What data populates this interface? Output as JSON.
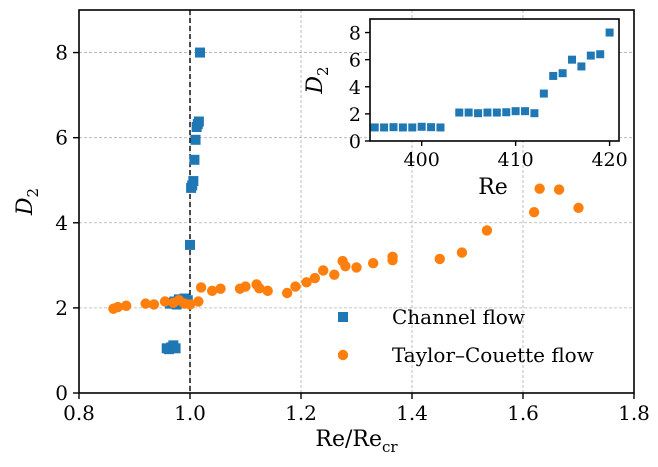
{
  "chart_data": [
    {
      "type": "scatter",
      "xlim": [
        0.8,
        1.8
      ],
      "ylim": [
        0,
        9
      ],
      "xticks": [
        0.8,
        1.0,
        1.2,
        1.4,
        1.6,
        1.8
      ],
      "yticks": [
        0,
        2,
        4,
        6,
        8
      ],
      "xtick_labels": [
        "0.8",
        "1.0",
        "1.2",
        "1.4",
        "1.6",
        "1.8"
      ],
      "ytick_labels": [
        "0",
        "2",
        "4",
        "6",
        "8"
      ],
      "xlabel": {
        "base": "Re/Re",
        "sub": "cr"
      },
      "ylabel": {
        "base": "D",
        "sub": "2"
      },
      "grid": true,
      "reference_line_x": 1.0,
      "legend": "lower-right",
      "series": [
        {
          "name": "Channel flow",
          "marker": "square",
          "color": "#1f77b4",
          "x": [
            0.958,
            0.962,
            0.966,
            0.97,
            0.974,
            0.968,
            0.964,
            0.972,
            0.976,
            0.98,
            0.984,
            0.99,
            0.996,
            1.0,
            1.002,
            1.004,
            1.006,
            1.008,
            1.01,
            1.012,
            1.014,
            1.016,
            1.018
          ],
          "y": [
            1.05,
            1.03,
            1.07,
            1.12,
            1.05,
            2.12,
            2.1,
            2.15,
            2.08,
            2.2,
            2.14,
            2.22,
            2.18,
            3.48,
            4.82,
            4.88,
            4.98,
            5.48,
            5.95,
            6.25,
            6.32,
            6.38,
            8.0
          ]
        },
        {
          "name": "Taylor–Couette flow",
          "marker": "circle",
          "color": "#ff7f0e",
          "x": [
            0.862,
            0.87,
            0.885,
            0.92,
            0.935,
            0.955,
            0.97,
            0.98,
            0.99,
            1.0,
            1.015,
            1.02,
            1.04,
            1.055,
            1.09,
            1.1,
            1.12,
            1.125,
            1.14,
            1.175,
            1.19,
            1.21,
            1.225,
            1.24,
            1.26,
            1.275,
            1.28,
            1.3,
            1.33,
            1.365,
            1.365,
            1.45,
            1.49,
            1.535,
            1.62,
            1.63,
            1.665,
            1.7
          ],
          "y": [
            1.98,
            2.02,
            2.05,
            2.1,
            2.08,
            2.15,
            2.12,
            2.18,
            2.1,
            2.08,
            2.15,
            2.48,
            2.4,
            2.45,
            2.45,
            2.5,
            2.55,
            2.46,
            2.4,
            2.35,
            2.5,
            2.6,
            2.7,
            2.88,
            2.78,
            3.1,
            2.98,
            2.95,
            3.05,
            3.2,
            3.12,
            3.15,
            3.3,
            3.82,
            4.25,
            4.8,
            4.78,
            4.35
          ]
        }
      ]
    },
    {
      "type": "scatter",
      "inset": true,
      "xlim": [
        394.5,
        421
      ],
      "ylim": [
        0,
        9
      ],
      "xticks": [
        400,
        410,
        420
      ],
      "yticks": [
        0,
        2,
        4,
        6,
        8
      ],
      "xtick_labels": [
        "400",
        "410",
        "420"
      ],
      "ytick_labels": [
        "0",
        "2",
        "4",
        "6",
        "8"
      ],
      "xlabel": "Re",
      "ylabel": {
        "base": "D",
        "sub": "2"
      },
      "grid": false,
      "series": [
        {
          "marker": "square",
          "color": "#1f77b4",
          "x": [
            395,
            396,
            397,
            398,
            399,
            400,
            401,
            402,
            404,
            405,
            406,
            407,
            408,
            409,
            410,
            411,
            412,
            413,
            414,
            415,
            416,
            417,
            418,
            419,
            420
          ],
          "y": [
            1.0,
            1.0,
            1.02,
            1.0,
            1.0,
            1.05,
            1.02,
            1.0,
            2.1,
            2.1,
            2.05,
            2.1,
            2.1,
            2.12,
            2.2,
            2.2,
            2.05,
            3.5,
            4.8,
            5.0,
            6.0,
            5.5,
            6.3,
            6.4,
            8.0
          ]
        }
      ]
    }
  ]
}
